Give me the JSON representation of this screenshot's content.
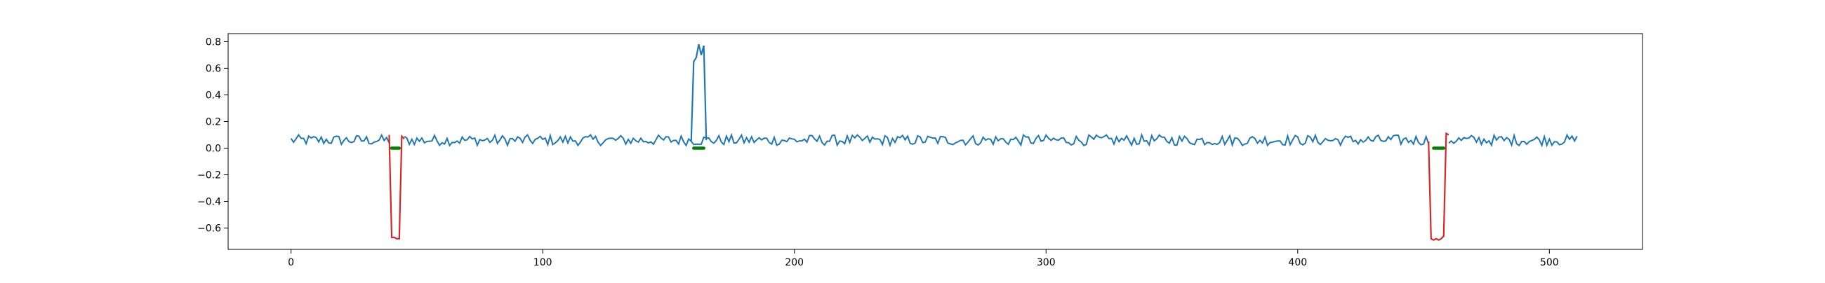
{
  "chart_data": {
    "type": "line",
    "title": "",
    "xlabel": "",
    "ylabel": "",
    "xlim": [
      -25,
      537
    ],
    "ylim": [
      -0.76,
      0.86
    ],
    "x_ticks": [
      0,
      100,
      200,
      300,
      400,
      500
    ],
    "x_tick_labels": [
      "0",
      "100",
      "200",
      "300",
      "400",
      "500"
    ],
    "y_ticks": [
      0.8,
      0.6,
      0.4,
      0.2,
      0.0,
      -0.2,
      -0.4,
      -0.6
    ],
    "y_tick_labels": [
      "0.8",
      "0.6",
      "0.4",
      "0.2",
      "0.0",
      "−0.2",
      "−0.4",
      "−0.6"
    ],
    "grid": false,
    "legend": "none",
    "series": [
      {
        "color": "#1f77b4",
        "style": "line",
        "x_start": 0,
        "x_end": 511,
        "base": 0.06,
        "noise_amplitude": 0.04,
        "segments_shown": "0-39, 45-452, 460-511"
      },
      {
        "color": "#1f77b4",
        "style": "line",
        "x": [
          159,
          160,
          161,
          162,
          163,
          164,
          165
        ],
        "y": [
          0.05,
          0.65,
          0.68,
          0.78,
          0.7,
          0.77,
          0.06
        ]
      },
      {
        "color": "#d62728",
        "style": "line",
        "x": [
          39,
          40,
          41,
          42,
          43,
          44,
          45
        ],
        "y": [
          0.1,
          -0.67,
          -0.67,
          -0.68,
          -0.68,
          0.09,
          0.07
        ]
      },
      {
        "color": "#d62728",
        "style": "line",
        "x": [
          452,
          453,
          454,
          455,
          456,
          457,
          458,
          459,
          460
        ],
        "y": [
          0.05,
          -0.68,
          -0.69,
          -0.68,
          -0.69,
          -0.68,
          -0.66,
          0.11,
          0.1
        ]
      },
      {
        "color": "#008000",
        "style": "thick-segment",
        "segments": [
          [
            40,
            43,
            0.0
          ],
          [
            160,
            164,
            0.0
          ],
          [
            454,
            458,
            0.0
          ]
        ]
      }
    ]
  }
}
